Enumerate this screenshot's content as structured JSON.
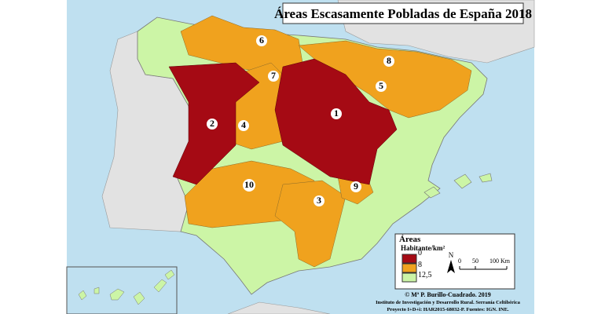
{
  "title": "Áreas Escasamente Pobladas de España 2018",
  "regions": [
    {
      "label": "1"
    },
    {
      "label": "2"
    },
    {
      "label": "3"
    },
    {
      "label": "4"
    },
    {
      "label": "5"
    },
    {
      "label": "6"
    },
    {
      "label": "7"
    },
    {
      "label": "8"
    },
    {
      "label": "9"
    },
    {
      "label": "10"
    }
  ],
  "legend": {
    "title": "Áreas",
    "unit": "Habitante/km²",
    "items": [
      {
        "label": "0",
        "color": "#a50a14"
      },
      {
        "label": "8",
        "color": "#f0a21e"
      },
      {
        "label": "12,5",
        "color": "#ccf5a6"
      }
    ]
  },
  "scale": {
    "north": "N",
    "ticks": [
      "0",
      "50",
      "100 Km"
    ]
  },
  "credits": [
    "© Mª P. Burillo-Cuadrado. 2019",
    "Instituto de Investigación y Desarrollo Rural. Serranía Celtibérica",
    "Proyecto I+D+i: HAR2015-68032-P. Fuentes: IGN. INE."
  ]
}
